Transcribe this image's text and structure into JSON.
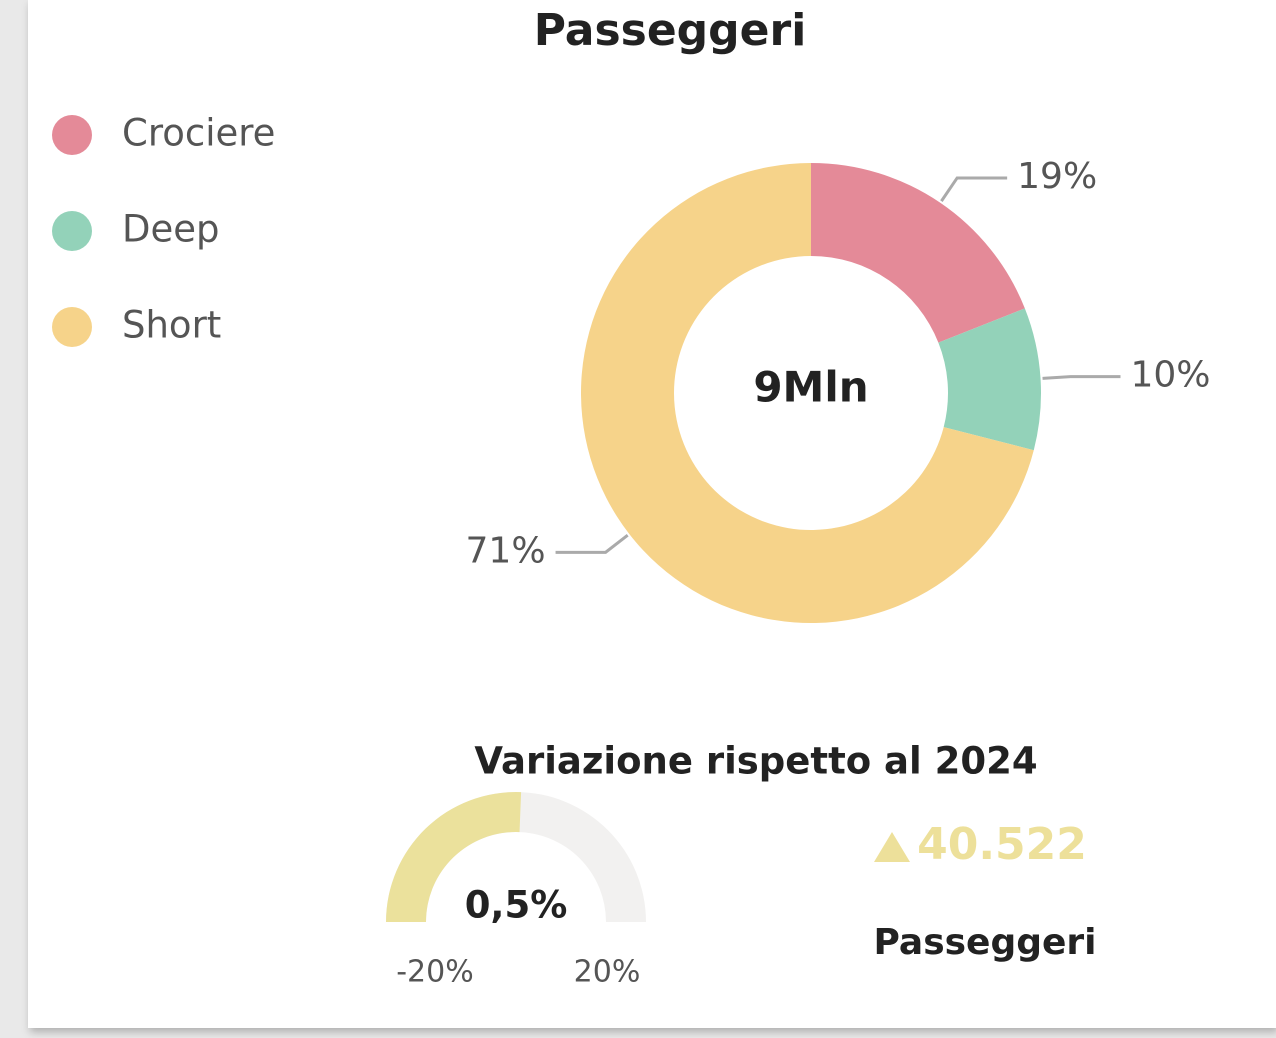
{
  "chart_data": [
    {
      "type": "pie",
      "title": "Passeggeri",
      "donut": true,
      "center_label": "9Mln",
      "categories": [
        "Crociere",
        "Deep",
        "Short"
      ],
      "values": [
        19,
        10,
        71
      ],
      "value_labels": [
        "19%",
        "10%",
        "71%"
      ],
      "colors": [
        "#e48a98",
        "#93d2b9",
        "#f6d38a"
      ],
      "legend": "top-left"
    },
    {
      "type": "gauge",
      "title": "Variazione rispetto al 2024",
      "value": 0.5,
      "value_label": "0,5%",
      "range": [
        {
          "value": -20,
          "label": "-20%"
        },
        {
          "value": 20,
          "label": "20%"
        }
      ],
      "color": "#ebe19c",
      "track_color": "#f2f1f0"
    }
  ],
  "kpi": {
    "value": "40.522",
    "label": "Passeggeri"
  }
}
